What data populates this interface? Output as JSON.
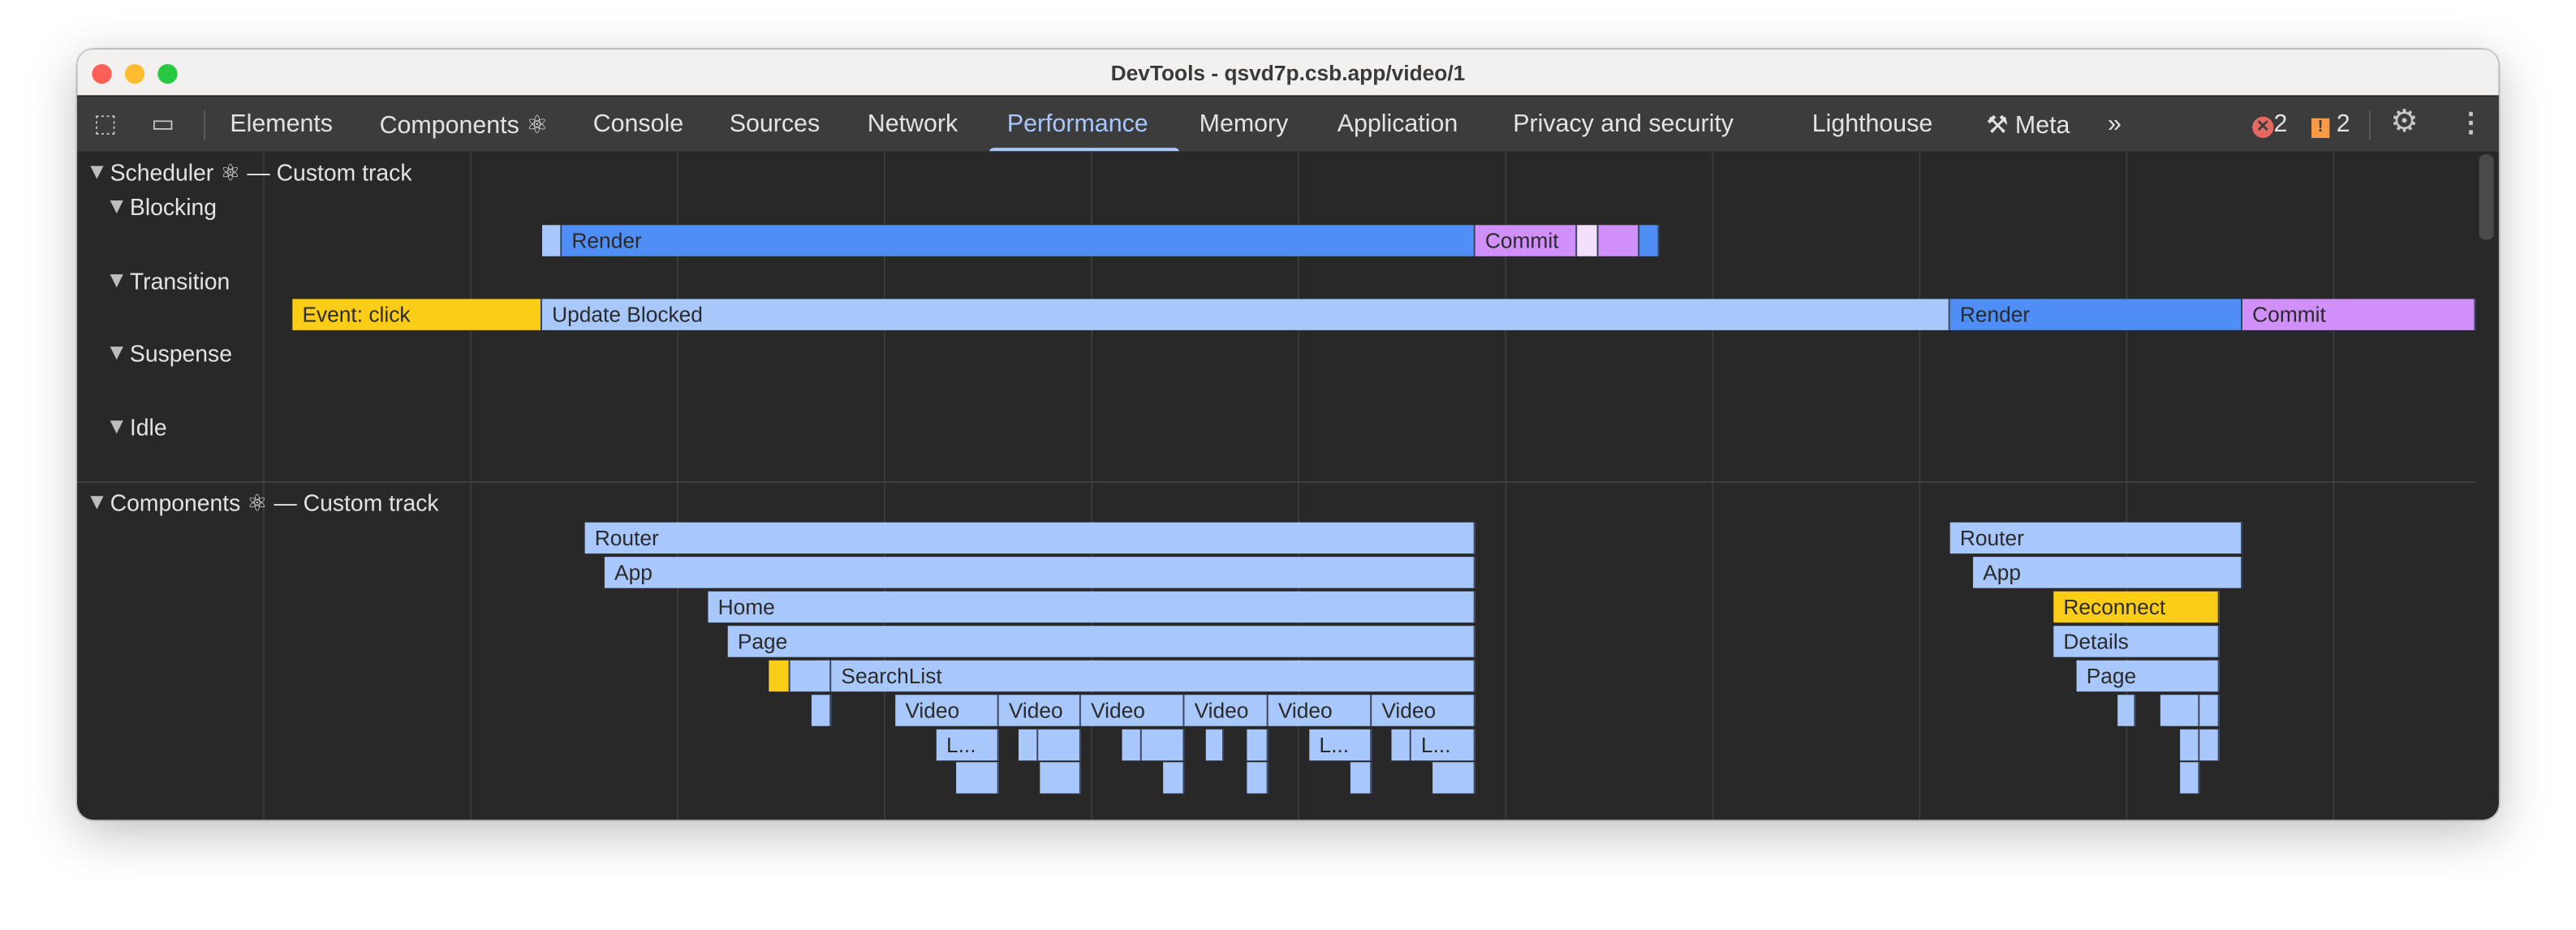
{
  "window": {
    "title": "DevTools - qsvd7p.csb.app/video/1"
  },
  "toolbar": {
    "tabs": [
      "Elements",
      "Components ⚛",
      "Console",
      "Sources",
      "Network",
      "Performance",
      "Memory",
      "Application",
      "Privacy and security",
      "Lighthouse",
      "Meta"
    ],
    "active_tab": "Performance",
    "more_tabs": "»",
    "errors": "2",
    "warnings": "2"
  },
  "scheduler": {
    "header": "Scheduler ⚛ — Custom track",
    "lanes": [
      "Blocking",
      "Transition",
      "Suspense",
      "Idle"
    ],
    "blocking": [
      "",
      "Render",
      "Commit",
      "",
      "",
      ""
    ],
    "transition": [
      "Event: click",
      "Update Blocked",
      "Render",
      "Commit"
    ]
  },
  "components": {
    "header": "Components ⚛ — Custom track",
    "left": {
      "router": "Router",
      "app": "App",
      "home": "Home",
      "page": "Page",
      "searchlist": "SearchList",
      "video": "Video",
      "truncated": "L..."
    },
    "right": {
      "router": "Router",
      "app": "App",
      "reconnect": "Reconnect",
      "details": "Details",
      "page": "Page"
    }
  },
  "colors": {
    "active": "#a8c7fa",
    "render": "#4f8ef5",
    "commit": "#d08ff9",
    "event": "#fccd16",
    "component": "#a8c7fa"
  }
}
